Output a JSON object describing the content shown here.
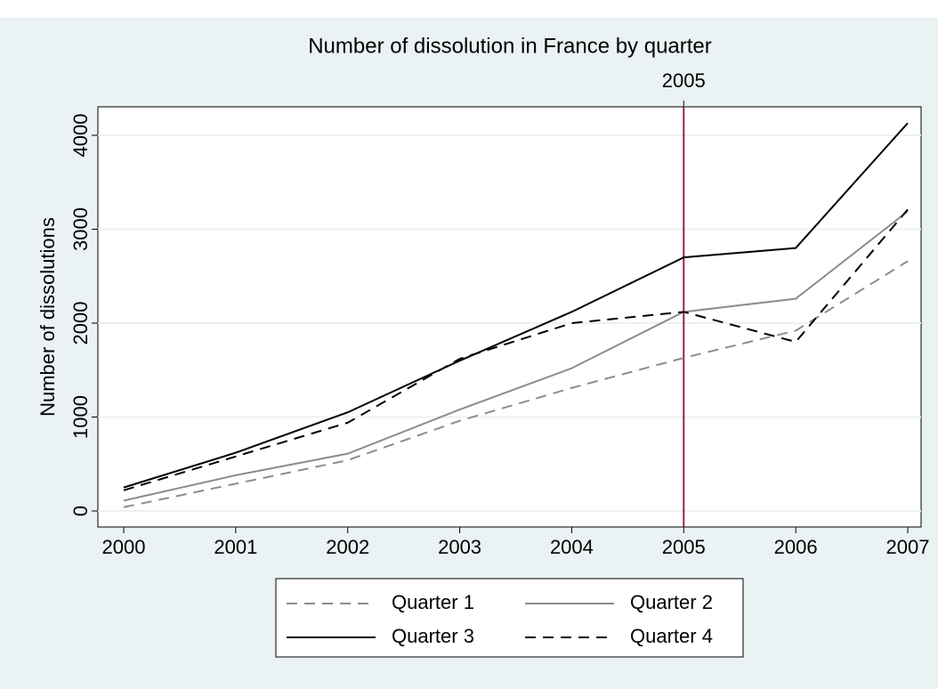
{
  "chart_data": {
    "type": "line",
    "title": "Number of dissolution in France by quarter",
    "y_label": "Number of dissolutions",
    "x": [
      2000,
      2001,
      2002,
      2003,
      2004,
      2005,
      2006,
      2007
    ],
    "xlim": [
      2000,
      2007
    ],
    "xticks": [
      2000,
      2001,
      2002,
      2003,
      2004,
      2005,
      2006,
      2007
    ],
    "ylim": [
      0,
      4000
    ],
    "yticks": [
      0,
      1000,
      2000,
      3000,
      4000
    ],
    "grid": true,
    "vline": 2005,
    "vline_color": "#a0213a",
    "series": [
      {
        "name": "Quarter 1",
        "color": "#8c8c8c",
        "dashed": true,
        "values": [
          40,
          290,
          540,
          960,
          1310,
          1630,
          1920,
          2660
        ]
      },
      {
        "name": "Quarter 2",
        "color": "#8c8c8c",
        "dashed": false,
        "values": [
          110,
          380,
          610,
          1080,
          1520,
          2120,
          2260,
          3190
        ]
      },
      {
        "name": "Quarter 3",
        "color": "#000000",
        "dashed": false,
        "values": [
          250,
          620,
          1050,
          1600,
          2120,
          2700,
          2800,
          4130
        ]
      },
      {
        "name": "Quarter 4",
        "color": "#000000",
        "dashed": true,
        "values": [
          220,
          580,
          940,
          1620,
          2000,
          2120,
          1800,
          3210
        ]
      }
    ]
  }
}
